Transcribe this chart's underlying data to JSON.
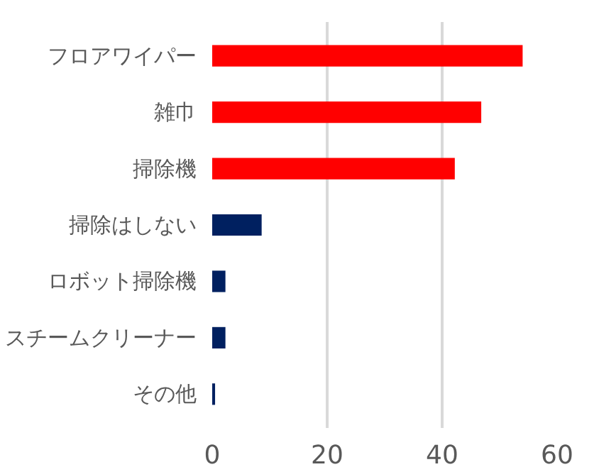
{
  "chart_data": {
    "type": "bar",
    "orientation": "horizontal",
    "categories": [
      "フロアワイパー",
      "雑巾",
      "掃除機",
      "掃除はしない",
      "ロボット掃除機",
      "スチームクリーナー",
      "その他"
    ],
    "values": [
      54,
      46.8,
      42.2,
      8.6,
      2.3,
      2.3,
      0.5
    ],
    "colors": [
      "#ff0000",
      "#ff0000",
      "#ff0000",
      "#002060",
      "#002060",
      "#002060",
      "#002060"
    ],
    "xlim": [
      0,
      60
    ],
    "xticks": [
      0,
      20,
      40,
      60
    ],
    "grid": "x"
  }
}
